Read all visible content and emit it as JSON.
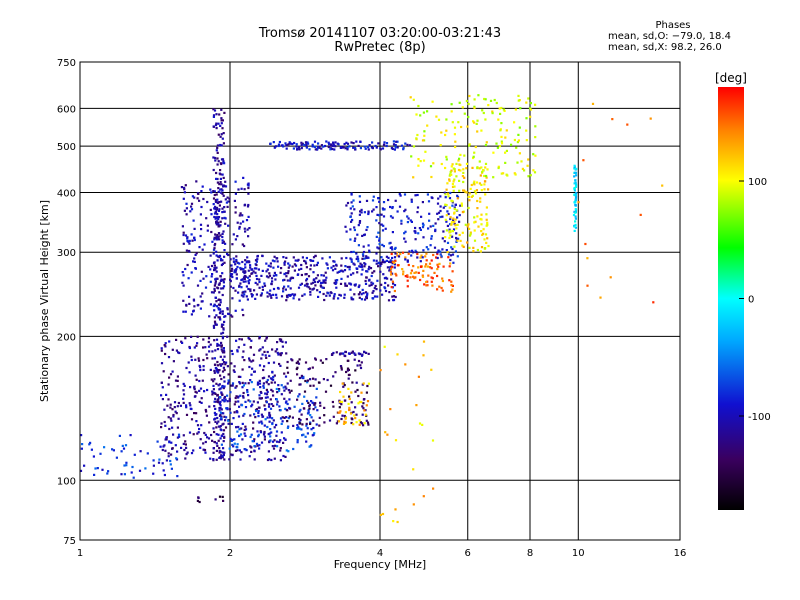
{
  "chart_data": {
    "type": "scatter",
    "title": "Tromsø 20141107 03:20:00-03:21:43",
    "subtitle": "RwPretec (8p)",
    "xlabel": "Frequency [MHz]",
    "ylabel": "Stationary phase Virtual Height [km]",
    "x_scale": "log",
    "y_scale": "log",
    "xlim": [
      1,
      16
    ],
    "ylim": [
      75,
      750
    ],
    "x_ticks": [
      1,
      2,
      4,
      6,
      8,
      10,
      16
    ],
    "y_ticks": [
      75,
      100,
      200,
      300,
      400,
      500,
      600,
      750
    ],
    "grid": true,
    "phase_summary": {
      "header": "Phases",
      "line1": "mean, sd,O: −79.0, 18.4",
      "line2": "mean, sd,X:  98.2, 26.0"
    },
    "colorbar": {
      "label": "[deg]",
      "range": [
        -180,
        180
      ],
      "ticks": [
        100,
        0,
        -100
      ]
    },
    "traces": [
      {
        "x0": 1.85,
        "x1": 1.95,
        "y0": 110,
        "y1": 600,
        "phase": -110,
        "count": 300
      },
      {
        "x0": 1.45,
        "x1": 2.6,
        "y0": 110,
        "y1": 200,
        "phase": -115,
        "count": 500
      },
      {
        "x0": 1.9,
        "x1": 3.0,
        "y0": 115,
        "y1": 165,
        "phase": -75,
        "count": 180
      },
      {
        "x0": 1.0,
        "x1": 1.6,
        "y0": 100,
        "y1": 125,
        "phase": -80,
        "count": 60
      },
      {
        "x0": 1.6,
        "x1": 2.2,
        "y0": 220,
        "y1": 430,
        "phase": -105,
        "count": 250
      },
      {
        "x0": 2.0,
        "x1": 4.3,
        "y0": 238,
        "y1": 295,
        "phase": -105,
        "count": 450
      },
      {
        "x0": 4.2,
        "x1": 5.6,
        "y0": 248,
        "y1": 300,
        "phase": 150,
        "count": 100
      },
      {
        "x0": 3.4,
        "x1": 5.8,
        "y0": 285,
        "y1": 400,
        "phase": -90,
        "count": 250
      },
      {
        "x0": 5.4,
        "x1": 6.6,
        "y0": 300,
        "y1": 460,
        "phase": 110,
        "count": 160
      },
      {
        "x0": 2.4,
        "x1": 4.6,
        "y0": 492,
        "y1": 512,
        "phase": -95,
        "count": 130
      },
      {
        "x0": 4.6,
        "x1": 8.2,
        "y0": 430,
        "y1": 640,
        "phase": 95,
        "count": 170
      },
      {
        "x0": 2.6,
        "x1": 3.8,
        "y0": 130,
        "y1": 180,
        "phase": -135,
        "count": 150
      },
      {
        "x0": 3.3,
        "x1": 3.8,
        "y0": 130,
        "y1": 160,
        "phase": 120,
        "count": 40
      },
      {
        "x0": 3.2,
        "x1": 3.8,
        "y0": 182,
        "y1": 186,
        "phase": -105,
        "count": 30
      },
      {
        "x0": 9.8,
        "x1": 9.9,
        "y0": 330,
        "y1": 460,
        "phase": -20,
        "count": 50
      },
      {
        "x0": 9.0,
        "x1": 15.0,
        "y0": 220,
        "y1": 620,
        "phase": 145,
        "count": 14
      },
      {
        "x0": 4.0,
        "x1": 5.2,
        "y0": 80,
        "y1": 200,
        "phase": 120,
        "count": 25
      },
      {
        "x0": 1.7,
        "x1": 1.95,
        "y0": 90,
        "y1": 100,
        "phase": -140,
        "count": 8
      }
    ]
  }
}
